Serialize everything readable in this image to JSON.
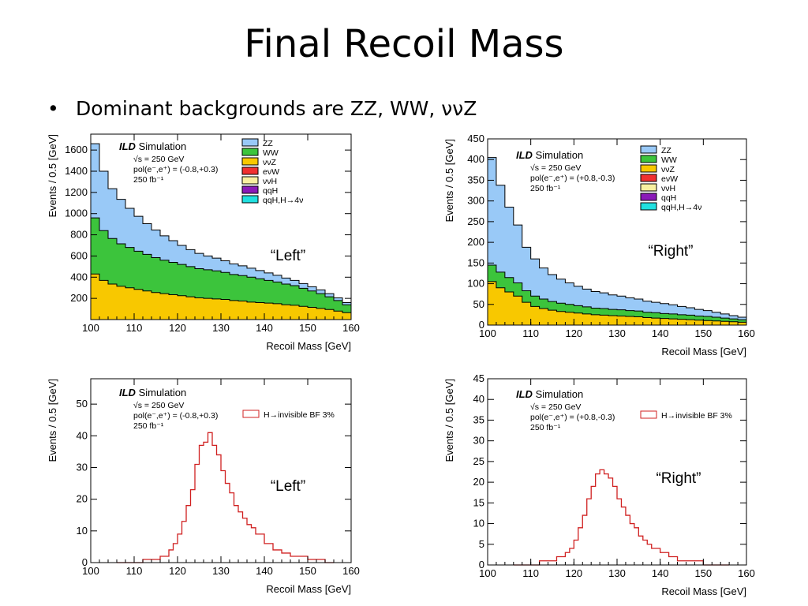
{
  "slide": {
    "title": "Final Recoil Mass",
    "bullet": "Dominant backgrounds are ZZ, WW, ννZ"
  },
  "colors": {
    "ZZ": "#99c9f7",
    "WW": "#3cc43c",
    "vvZ": "#f8c800",
    "evW": "#f03030",
    "vvH": "#f8f0a0",
    "qqH": "#8a1ab8",
    "qqH_H4v": "#20e0e0",
    "signal": "#d02020"
  },
  "chart_data": [
    {
      "type": "area",
      "stacked": true,
      "sim_title": "ILD Simulation",
      "sim_info": [
        "√s = 250 GeV",
        "pol(e⁻,e⁺) = (-0.8,+0.3)",
        "250 fb⁻¹"
      ],
      "xlabel": "Recoil Mass [GeV]",
      "ylabel": "Events / 0.5 [GeV]",
      "xlim": [
        100,
        160
      ],
      "ylim": [
        0,
        1750
      ],
      "xticks": [
        100,
        110,
        120,
        130,
        140,
        150,
        160
      ],
      "yticks": [
        200,
        400,
        600,
        800,
        1000,
        1200,
        1400,
        1600
      ],
      "legend": [
        "ZZ",
        "WW",
        "ννZ",
        "eνW",
        "ννH",
        "qqH",
        "qqH,H→4ν"
      ],
      "legend_position": "top-right",
      "annotation": "“Left”",
      "x": [
        100,
        102,
        104,
        106,
        108,
        110,
        112,
        114,
        116,
        118,
        120,
        122,
        124,
        126,
        128,
        130,
        132,
        134,
        136,
        138,
        140,
        142,
        144,
        146,
        148,
        150,
        152,
        154,
        156,
        158,
        160
      ],
      "series": [
        {
          "name": "ννZ",
          "values": [
            430,
            370,
            335,
            315,
            300,
            285,
            270,
            255,
            245,
            235,
            225,
            215,
            205,
            200,
            195,
            190,
            180,
            175,
            165,
            160,
            155,
            150,
            140,
            135,
            125,
            115,
            105,
            95,
            80,
            65,
            50
          ]
        },
        {
          "name": "WW",
          "values": [
            530,
            470,
            430,
            400,
            380,
            360,
            345,
            330,
            315,
            305,
            295,
            285,
            275,
            270,
            265,
            255,
            245,
            240,
            235,
            225,
            215,
            205,
            195,
            185,
            170,
            155,
            140,
            120,
            100,
            75,
            60
          ]
        },
        {
          "name": "ZZ",
          "values": [
            700,
            560,
            470,
            420,
            370,
            330,
            290,
            260,
            230,
            205,
            180,
            160,
            145,
            130,
            120,
            110,
            100,
            92,
            85,
            78,
            70,
            63,
            57,
            50,
            45,
            40,
            35,
            30,
            25,
            20,
            15
          ]
        }
      ]
    },
    {
      "type": "area",
      "stacked": true,
      "sim_title": "ILD Simulation",
      "sim_info": [
        "√s = 250 GeV",
        "pol(e⁻,e⁺) = (+0.8,-0.3)",
        "250 fb⁻¹"
      ],
      "xlabel": "Recoil Mass [GeV]",
      "ylabel": "Events / 0.5 [GeV]",
      "xlim": [
        100,
        160
      ],
      "ylim": [
        0,
        450
      ],
      "xticks": [
        100,
        110,
        120,
        130,
        140,
        150,
        160
      ],
      "yticks": [
        0,
        50,
        100,
        150,
        200,
        250,
        300,
        350,
        400,
        450
      ],
      "legend": [
        "ZZ",
        "WW",
        "ννZ",
        "eνW",
        "ννH",
        "qqH",
        "qqH,H→4ν"
      ],
      "legend_position": "top-right",
      "annotation": "“Right”",
      "x": [
        100,
        102,
        104,
        106,
        108,
        110,
        112,
        114,
        116,
        118,
        120,
        122,
        124,
        126,
        128,
        130,
        132,
        134,
        136,
        138,
        140,
        142,
        144,
        146,
        148,
        150,
        152,
        154,
        156,
        158,
        160
      ],
      "series": [
        {
          "name": "ννZ",
          "values": [
            105,
            90,
            80,
            70,
            55,
            45,
            40,
            36,
            33,
            31,
            29,
            27,
            25,
            24,
            23,
            22,
            21,
            20,
            18,
            17,
            16,
            15,
            14,
            13,
            12,
            11,
            10,
            9,
            8,
            7,
            6
          ]
        },
        {
          "name": "WW",
          "values": [
            40,
            38,
            35,
            32,
            28,
            25,
            23,
            21,
            20,
            19,
            18,
            17,
            16,
            16,
            15,
            15,
            14,
            14,
            13,
            13,
            12,
            12,
            11,
            11,
            10,
            10,
            9,
            8,
            7,
            6,
            5
          ]
        },
        {
          "name": "ZZ",
          "values": [
            260,
            210,
            170,
            140,
            105,
            90,
            75,
            65,
            58,
            52,
            47,
            43,
            40,
            38,
            35,
            33,
            31,
            29,
            27,
            25,
            24,
            22,
            20,
            18,
            16,
            14,
            12,
            10,
            8,
            6,
            4
          ]
        }
      ]
    },
    {
      "type": "line",
      "step": true,
      "sim_title": "ILD Simulation",
      "sim_info": [
        "√s = 250 GeV",
        "pol(e⁻,e⁺) = (-0.8,+0.3)",
        "250 fb⁻¹"
      ],
      "xlabel": "Recoil Mass [GeV]",
      "ylabel": "Events / 0.5 [GeV]",
      "xlim": [
        100,
        160
      ],
      "ylim": [
        0,
        58
      ],
      "xticks": [
        100,
        110,
        120,
        130,
        140,
        150,
        160
      ],
      "yticks": [
        0,
        10,
        20,
        30,
        40,
        50
      ],
      "legend": [
        "H→invisible BF 3%"
      ],
      "legend_position": "top-right",
      "annotation": "“Left”",
      "x": [
        106,
        108,
        110,
        112,
        114,
        116,
        118,
        119,
        120,
        121,
        122,
        123,
        124,
        125,
        126,
        127,
        128,
        129,
        130,
        131,
        132,
        133,
        134,
        135,
        136,
        137,
        138,
        140,
        142,
        144,
        146,
        148,
        150,
        152,
        154,
        156
      ],
      "series": [
        {
          "name": "H→invisible BF 3%",
          "values": [
            0,
            0,
            0,
            1,
            1,
            2,
            4,
            6,
            9,
            13,
            18,
            23,
            31,
            37,
            38,
            41,
            37,
            34,
            29,
            25,
            22,
            18,
            16,
            14,
            12,
            11,
            9,
            6,
            4,
            3,
            2,
            2,
            1,
            1,
            0,
            0
          ]
        }
      ]
    },
    {
      "type": "line",
      "step": true,
      "sim_title": "ILD Simulation",
      "sim_info": [
        "√s = 250 GeV",
        "pol(e⁻,e⁺) = (+0.8,-0.3)",
        "250 fb⁻¹"
      ],
      "xlabel": "Recoil Mass [GeV]",
      "ylabel": "Events / 0.5 [GeV]",
      "xlim": [
        100,
        160
      ],
      "ylim": [
        0,
        45
      ],
      "xticks": [
        100,
        110,
        120,
        130,
        140,
        150,
        160
      ],
      "yticks": [
        0,
        5,
        10,
        15,
        20,
        25,
        30,
        35,
        40,
        45
      ],
      "legend": [
        "H→invisible BF 3%"
      ],
      "legend_position": "top-right",
      "annotation": "“Right”",
      "x": [
        106,
        108,
        110,
        112,
        114,
        116,
        118,
        119,
        120,
        121,
        122,
        123,
        124,
        125,
        126,
        127,
        128,
        129,
        130,
        131,
        132,
        133,
        134,
        135,
        136,
        137,
        138,
        140,
        142,
        144,
        146,
        148,
        150,
        152,
        154,
        156
      ],
      "series": [
        {
          "name": "H→invisible BF 3%",
          "values": [
            0,
            0,
            0,
            1,
            1,
            2,
            3,
            4,
            6,
            9,
            12,
            16,
            19,
            22,
            23,
            22,
            21,
            19,
            16,
            14,
            12,
            10,
            9,
            7,
            6,
            5,
            4,
            3,
            2,
            1,
            1,
            1,
            0,
            0,
            0,
            0
          ]
        }
      ]
    }
  ]
}
